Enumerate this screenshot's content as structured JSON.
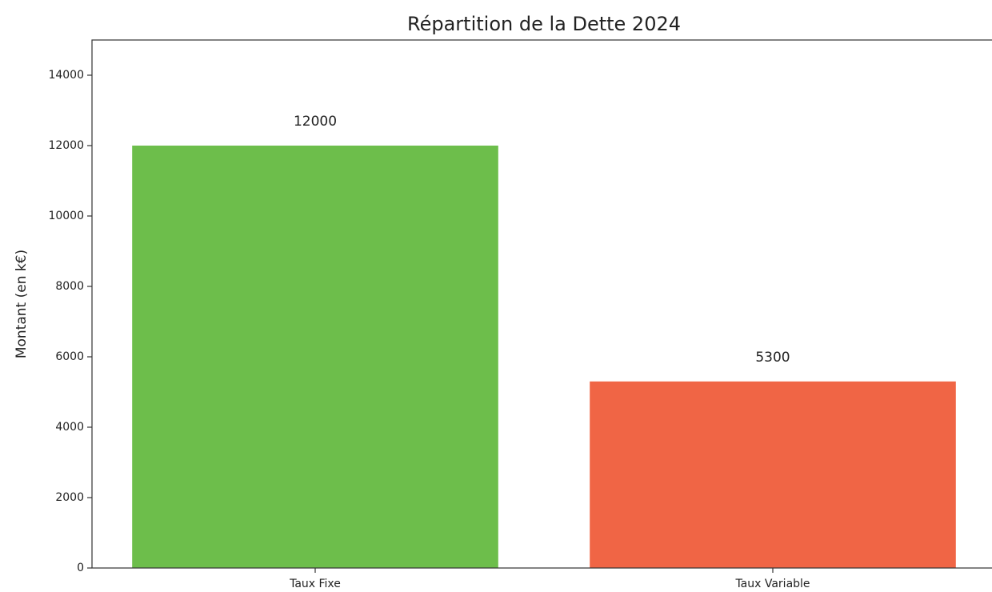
{
  "chart_data": {
    "type": "bar",
    "title": "Répartition de la Dette 2024",
    "ylabel": "Montant (en k€)",
    "categories": [
      "Taux Fixe",
      "Taux Variable"
    ],
    "values": [
      12000,
      5300
    ],
    "colors": [
      "#6dbe4b",
      "#f06545"
    ],
    "ylim": [
      0,
      15000
    ],
    "yticks": [
      0,
      2000,
      4000,
      6000,
      8000,
      10000,
      12000,
      14000
    ],
    "grid": false
  }
}
